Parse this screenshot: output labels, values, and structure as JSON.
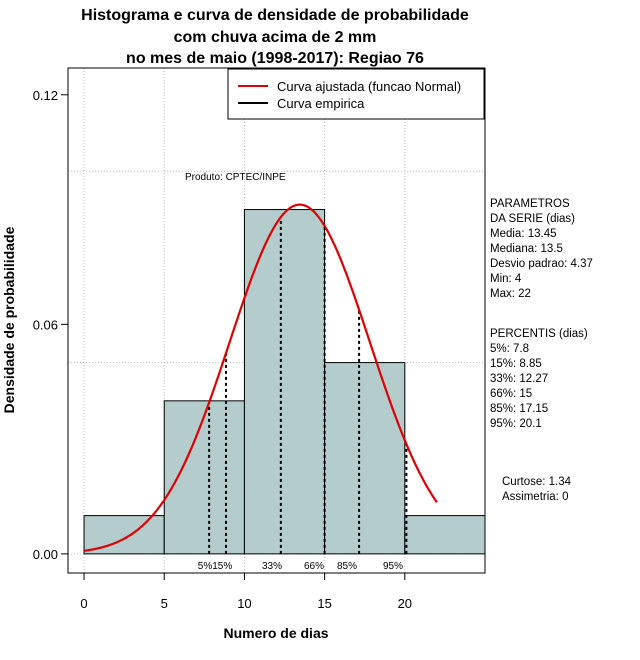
{
  "chart_data": {
    "type": "bar",
    "title_lines": [
      "Histograma e curva de densidade de probabilidade",
      "com chuva acima de 2 mm",
      "no mes de maio (1998-2017): Regiao 76"
    ],
    "xlabel": "Numero de dias",
    "ylabel": "Densidade de probabilidade",
    "xlim": [
      -1,
      25
    ],
    "ylim": [
      -0.005,
      0.127
    ],
    "x_ticks": [
      0,
      5,
      10,
      15,
      20
    ],
    "y_ticks": [
      0.0,
      0.06,
      0.12
    ],
    "y_tick_labels": [
      "0.00",
      "0.06",
      "0.12"
    ],
    "grid_x": [
      0,
      5,
      10,
      15,
      20
    ],
    "grid_y": [
      0,
      0.05,
      0.1
    ],
    "bins": [
      {
        "x0": 0,
        "x1": 5,
        "density": 0.01
      },
      {
        "x0": 5,
        "x1": 10,
        "density": 0.04
      },
      {
        "x0": 10,
        "x1": 15,
        "density": 0.09
      },
      {
        "x0": 15,
        "x1": 20,
        "density": 0.05
      },
      {
        "x0": 20,
        "x1": 25,
        "density": 0.01
      }
    ],
    "normal_fit": {
      "mean": 13.45,
      "sd": 4.37,
      "x_from": 0,
      "x_to": 22
    },
    "percentile_lines": [
      {
        "label": "5%",
        "x": 7.8
      },
      {
        "label": "15%",
        "x": 8.85
      },
      {
        "label": "33%",
        "x": 12.27
      },
      {
        "label": "66%",
        "x": 15
      },
      {
        "label": "85%",
        "x": 17.15
      },
      {
        "label": "95%",
        "x": 20.1
      }
    ],
    "percentile_text": [
      "5%15%",
      "33%",
      "66%",
      "85%",
      "95%"
    ],
    "legend": [
      {
        "label": "Curva ajustada (funcao Normal)",
        "color": "#dd0000"
      },
      {
        "label": "Curva empirica",
        "color": "#000000"
      }
    ],
    "product_note": "Produto: CPTEC/INPE",
    "colors": {
      "bar": "#b4cccc",
      "curve": "#dd0000",
      "grid": "#bbbbbb"
    }
  },
  "side_panel": {
    "parametros": [
      "PARAMETROS",
      "DA SERIE (dias)",
      "  Media: 13.45",
      "  Mediana: 13.5",
      "  Desvio padrao: 4.37",
      "  Min: 4",
      "  Max: 22"
    ],
    "percentis": [
      "PERCENTIS (dias)",
      "  5%: 7.8",
      "  15%: 8.85",
      "  33%: 12.27",
      "  66%: 15",
      "  85%: 17.15",
      "  95%: 20.1"
    ],
    "stats": [
      "Curtose: 1.34",
      "  Assimetria: 0"
    ]
  }
}
